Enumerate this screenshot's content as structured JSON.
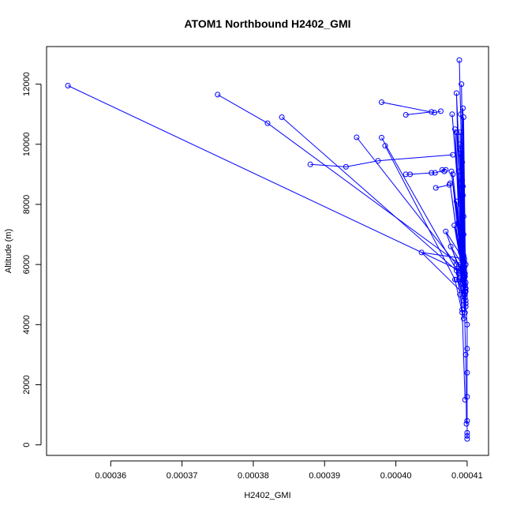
{
  "chart_data": {
    "type": "line",
    "title": "ATOM1 Northbound H2402_GMI",
    "xlabel": "H2402_GMI",
    "ylabel": "Altitude (m)",
    "xlim": [
      0.000351,
      0.000413
    ],
    "ylim": [
      -350,
      13250
    ],
    "x_ticks": [
      0.00036,
      0.00037,
      0.00038,
      0.00039,
      0.0004,
      0.00041
    ],
    "x_tick_labels": [
      "0.00036",
      "0.00037",
      "0.00038",
      "0.00039",
      "0.00040",
      "0.00041"
    ],
    "y_ticks": [
      0,
      2000,
      4000,
      6000,
      8000,
      10000,
      12000
    ],
    "y_tick_labels": [
      "0",
      "2000",
      "4000",
      "6000",
      "8000",
      "10000",
      "12000"
    ],
    "grid": false,
    "legend": "none",
    "marker": "open-circle",
    "color": "#0000ff",
    "series": [
      {
        "x": [
          0.00041,
          0.00041,
          0.00041,
          0.00041,
          0.00041,
          0.00041,
          0.00041,
          0.00041,
          0.0004098,
          0.0004097,
          0.0004098,
          0.0004096,
          0.0004098,
          0.0004096,
          0.0004097,
          0.0004095,
          0.0004097,
          0.0004095,
          0.0004096,
          0.0004094,
          0.0004097,
          0.0004093,
          0.0004096,
          0.0004092,
          0.0004096,
          0.000409,
          0.0004096,
          0.0004085,
          0.0004092,
          0.0004083,
          0.0004095,
          0.000408,
          0.0004094,
          0.0004078,
          0.0004093,
          0.0004076,
          0.0004094,
          0.000407,
          0.0004094,
          0.0004036,
          0.0004096,
          0.0004085,
          0.0004096,
          0.0004088,
          0.0004098,
          0.000409,
          0.0004097,
          0.0004091,
          0.0004098,
          0.0004093,
          0.0004096,
          0.0004088,
          0.0004096,
          0.000409,
          0.0004097,
          0.0004091,
          0.0004096,
          0.0004079,
          0.0004095,
          0.0004085,
          0.0004096,
          0.0004092,
          0.0004097,
          0.0004089,
          0.0004096,
          0.0004094,
          0.0004097,
          0.0004091,
          0.0004098,
          0.0004095,
          0.0004096,
          0.0004093,
          0.0004098,
          0.0004094,
          0.0004096,
          0.000409,
          0.0004093,
          0.0004082,
          0.0004095,
          0.0004085,
          0.0004097,
          0.0004088,
          0.0004095,
          0.0004077,
          0.0004096,
          0.0004092,
          0.0004094,
          0.0004091,
          0.0004096
        ],
        "y": [
          200,
          300,
          400,
          800,
          1600,
          2400,
          3200,
          4000,
          4600,
          5200,
          5400,
          5900,
          4800,
          6200,
          5600,
          7000,
          5100,
          7600,
          5300,
          8300,
          4900,
          8800,
          5500,
          9600,
          5800,
          10400,
          5700,
          11700,
          5400,
          10500,
          5600,
          9000,
          5900,
          9100,
          5800,
          8700,
          5500,
          7100,
          6200,
          6400,
          5000,
          5500,
          6000,
          6900,
          5200,
          7500,
          5700,
          8000,
          4700,
          8600,
          5900,
          9100,
          6100,
          10000,
          5300,
          11000,
          5800,
          11000,
          6300,
          10400,
          5600,
          12000,
          5000,
          12800,
          5900,
          11200,
          4400,
          9800,
          5100,
          10900,
          5700,
          9400,
          6000,
          8600,
          5400,
          9700,
          5800,
          7300,
          6100,
          8100,
          5300,
          7400,
          5600,
          6600,
          5900,
          8000,
          5200,
          6400,
          5700
        ]
      },
      {
        "x": [
          0.000354,
          0.000409,
          0.0004095,
          0.0004098,
          0.0004099
        ],
        "y": [
          11950,
          5800,
          5500,
          3000,
          700
        ]
      },
      {
        "x": [
          0.000375,
          0.000382,
          0.000409,
          0.0004093,
          0.0004097
        ],
        "y": [
          11650,
          10700,
          6000,
          4500,
          1500
        ]
      },
      {
        "x": [
          0.000384,
          0.0004085,
          0.0004095
        ],
        "y": [
          10900,
          5800,
          4200
        ]
      },
      {
        "x": [
          0.0003945,
          0.0004085,
          0.000409
        ],
        "y": [
          10230,
          6000,
          5000
        ]
      },
      {
        "x": [
          0.000398,
          0.0004088,
          0.0004095
        ],
        "y": [
          10220,
          5700,
          4800
        ]
      },
      {
        "x": [
          0.0003985,
          0.0004083,
          0.0004093
        ],
        "y": [
          9950,
          5500,
          4400
        ]
      },
      {
        "x": [
          0.000398,
          0.0004054,
          0.0004063
        ],
        "y": [
          11400,
          11050,
          11100
        ]
      },
      {
        "x": [
          0.0004014,
          0.000405
        ],
        "y": [
          10980,
          11080
        ]
      },
      {
        "x": [
          0.000388,
          0.000393,
          0.0003975,
          0.000408
        ],
        "y": [
          9330,
          9250,
          9450,
          9650
        ]
      },
      {
        "x": [
          0.0004014,
          0.000402,
          0.000405,
          0.0004055,
          0.000407,
          0.0004065,
          0.0004068
        ],
        "y": [
          9000,
          9000,
          9050,
          9050,
          9150,
          9150,
          9100
        ]
      },
      {
        "x": [
          0.0004056,
          0.0004075
        ],
        "y": [
          8550,
          8650
        ]
      }
    ]
  }
}
